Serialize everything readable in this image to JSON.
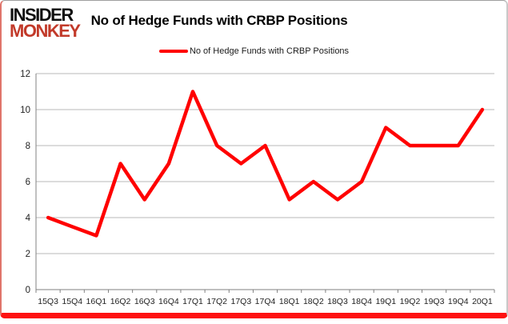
{
  "header": {
    "logo_line1": "INSIDER",
    "logo_line2": "MONKEY",
    "title": "No of Hedge Funds with CRBP Positions"
  },
  "legend": {
    "label": "No of Hedge Funds with CRBP Positions"
  },
  "chart_data": {
    "type": "line",
    "title": "No of Hedge Funds with CRBP Positions",
    "categories": [
      "15Q3",
      "15Q4",
      "16Q1",
      "16Q2",
      "16Q3",
      "16Q4",
      "17Q1",
      "17Q2",
      "17Q3",
      "17Q4",
      "18Q1",
      "18Q2",
      "18Q3",
      "18Q4",
      "19Q1",
      "19Q2",
      "19Q3",
      "19Q4",
      "20Q1"
    ],
    "series": [
      {
        "name": "No of Hedge Funds with CRBP Positions",
        "values": [
          4,
          3.5,
          3,
          7,
          5,
          7,
          11,
          8,
          7,
          8,
          5,
          6,
          5,
          6,
          9,
          8,
          8,
          8,
          10
        ]
      }
    ],
    "xlabel": "",
    "ylabel": "",
    "ylim": [
      0,
      12
    ],
    "yticks": [
      0,
      2,
      4,
      6,
      8,
      10,
      12
    ],
    "grid": true,
    "legend_position": "top-center",
    "line_color": "#ff0000"
  },
  "colors": {
    "line_red": "#ff0000",
    "logo_red": "#c23a2a",
    "frame_bottom_red": "#fe1111",
    "gridline": "#b9b9b9",
    "axis": "#808080",
    "tick_text": "#1f1f1f"
  }
}
